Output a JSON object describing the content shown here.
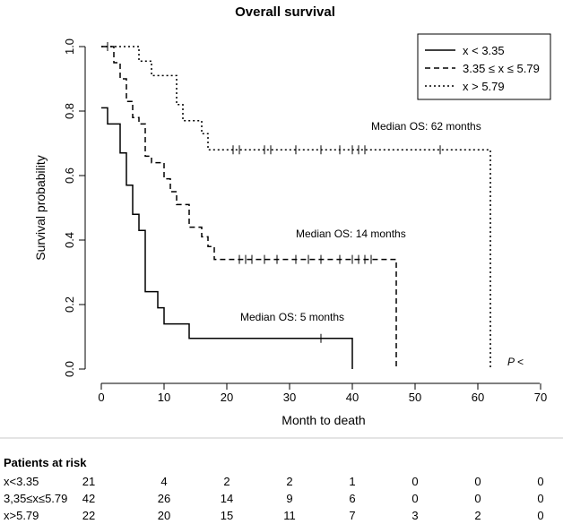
{
  "chart_data": {
    "type": "line",
    "subtype": "kaplan-meier",
    "title": "Overall survival",
    "xlabel": "Month to death",
    "ylabel": "Survival probability",
    "xlim": [
      0,
      70
    ],
    "ylim": [
      0,
      1.0
    ],
    "xticks": [
      "0",
      "10",
      "20",
      "30",
      "40",
      "50",
      "60",
      "70"
    ],
    "yticks": [
      "0.0",
      "0.2",
      "0.4",
      "0.6",
      "0.8",
      "1.0"
    ],
    "grid": false,
    "legend_position": "top-right",
    "series": [
      {
        "name": "x < 3.35",
        "line_style": "solid",
        "steps": [
          [
            0,
            0.81
          ],
          [
            1,
            0.76
          ],
          [
            3,
            0.67
          ],
          [
            4,
            0.57
          ],
          [
            5,
            0.48
          ],
          [
            6,
            0.43
          ],
          [
            7,
            0.24
          ],
          [
            9,
            0.19
          ],
          [
            10,
            0.14
          ],
          [
            14,
            0.095
          ],
          [
            40,
            0.0
          ]
        ],
        "end_x": 40,
        "censored": [
          35
        ],
        "median_label": "Median OS: 5 months"
      },
      {
        "name": "3.35 ≤ x ≤ 5.79",
        "line_style": "dashed",
        "steps": [
          [
            0,
            1.0
          ],
          [
            2,
            0.95
          ],
          [
            3,
            0.9
          ],
          [
            4,
            0.83
          ],
          [
            5,
            0.78
          ],
          [
            6,
            0.76
          ],
          [
            7,
            0.66
          ],
          [
            8,
            0.64
          ],
          [
            10,
            0.59
          ],
          [
            11,
            0.55
          ],
          [
            12,
            0.51
          ],
          [
            14,
            0.44
          ],
          [
            16,
            0.41
          ],
          [
            17,
            0.38
          ],
          [
            18,
            0.34
          ],
          [
            47,
            0.0
          ]
        ],
        "end_x": 47,
        "censored": [
          22,
          23,
          24,
          26,
          28,
          31,
          33,
          35,
          38,
          40,
          41,
          42,
          43
        ],
        "median_label": "Median OS: 14 months"
      },
      {
        "name": "x > 5.79",
        "line_style": "dotted",
        "steps": [
          [
            0,
            1.0
          ],
          [
            6,
            0.955
          ],
          [
            8,
            0.91
          ],
          [
            12,
            0.82
          ],
          [
            13,
            0.77
          ],
          [
            16,
            0.73
          ],
          [
            17,
            0.68
          ],
          [
            62,
            0.0
          ]
        ],
        "end_x": 62,
        "censored": [
          1,
          21,
          22,
          26,
          27,
          31,
          35,
          38,
          40,
          41,
          42,
          54
        ],
        "median_label": "Median OS: 62 months"
      }
    ],
    "annotation_p": "P <",
    "risk_table": {
      "title": "Patients at risk",
      "rows": [
        {
          "label": "x<3.35",
          "values": [
            "21",
            "4",
            "2",
            "2",
            "1",
            "0",
            "0",
            "0"
          ]
        },
        {
          "label": "3,35≤x≤5.79",
          "values": [
            "42",
            "26",
            "14",
            "9",
            "6",
            "0",
            "0",
            "0"
          ]
        },
        {
          "label": "x>5.79",
          "values": [
            "22",
            "20",
            "15",
            "11",
            "7",
            "3",
            "2",
            "0"
          ]
        }
      ]
    }
  }
}
